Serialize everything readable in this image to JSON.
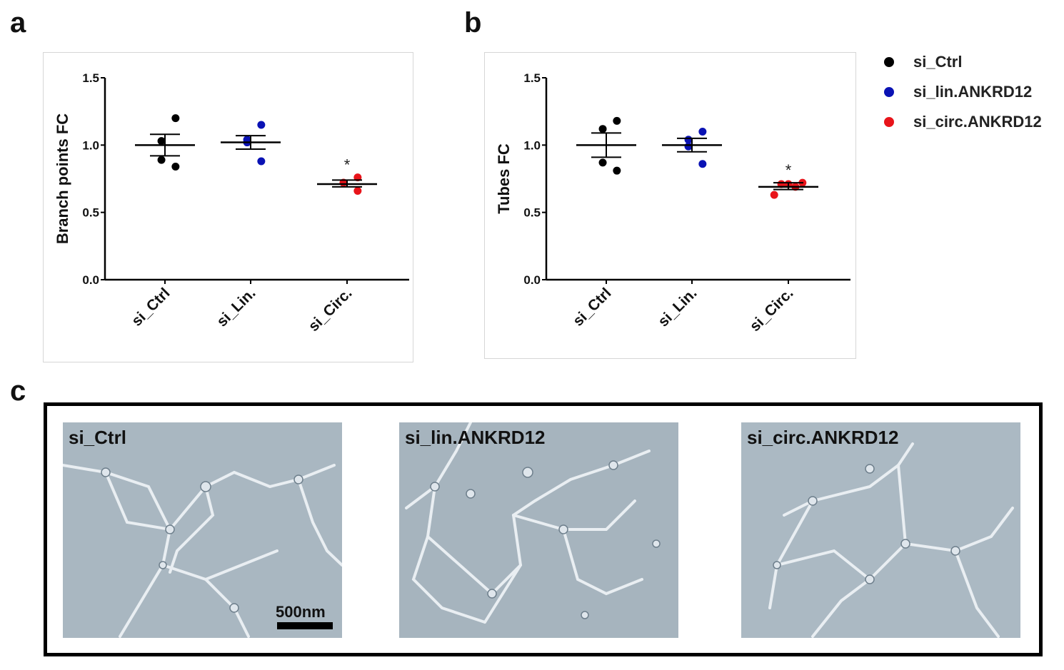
{
  "panels": {
    "a": "a",
    "b": "b",
    "c": "c"
  },
  "legend": [
    {
      "label": "si_Ctrl",
      "color": "#000000"
    },
    {
      "label": "si_lin.ANKRD12",
      "color": "#0a12b4"
    },
    {
      "label": "si_circ.ANKRD12",
      "color": "#e8141a"
    }
  ],
  "chart_data": [
    {
      "type": "scatter",
      "ylabel": "Branch points FC",
      "xlabel": "",
      "ylim": [
        0.0,
        1.5
      ],
      "yticks": [
        "0.0",
        "0.5",
        "1.0",
        "1.5"
      ],
      "categories": [
        "si_Ctrl",
        "si_Lin.",
        "si_Circ."
      ],
      "series": [
        {
          "name": "si_Ctrl",
          "color": "#000000",
          "points": [
            1.2,
            1.03,
            0.89,
            0.84
          ],
          "mean": 1.0,
          "sem": [
            0.92,
            1.08
          ]
        },
        {
          "name": "si_lin.ANKRD12",
          "color": "#0a12b4",
          "points": [
            1.15,
            1.04,
            1.02,
            0.88
          ],
          "mean": 1.02,
          "sem": [
            0.97,
            1.07
          ]
        },
        {
          "name": "si_circ.ANKRD12",
          "color": "#e8141a",
          "points": [
            0.76,
            0.72,
            0.72,
            0.66
          ],
          "mean": 0.71,
          "sem": [
            0.69,
            0.74
          ]
        }
      ],
      "annotations": [
        {
          "category": "si_Circ.",
          "text": "*"
        }
      ]
    },
    {
      "type": "scatter",
      "ylabel": "Tubes FC",
      "xlabel": "",
      "ylim": [
        0.0,
        1.5
      ],
      "yticks": [
        "0.0",
        "0.5",
        "1.0",
        "1.5"
      ],
      "categories": [
        "si_Ctrl",
        "si_Lin.",
        "si_Circ."
      ],
      "series": [
        {
          "name": "si_Ctrl",
          "color": "#000000",
          "points": [
            1.18,
            1.12,
            0.87,
            0.81
          ],
          "mean": 1.0,
          "sem": [
            0.91,
            1.09
          ]
        },
        {
          "name": "si_lin.ANKRD12",
          "color": "#0a12b4",
          "points": [
            1.1,
            1.04,
            0.99,
            0.86
          ],
          "mean": 1.0,
          "sem": [
            0.95,
            1.05
          ]
        },
        {
          "name": "si_circ.ANKRD12",
          "color": "#e8141a",
          "points": [
            0.72,
            0.71,
            0.71,
            0.69,
            0.63
          ],
          "mean": 0.69,
          "sem": [
            0.67,
            0.72
          ]
        }
      ],
      "annotations": [
        {
          "category": "si_Circ.",
          "text": "*"
        }
      ]
    }
  ],
  "micrographs": [
    {
      "label": "si_Ctrl"
    },
    {
      "label": "si_lin.ANKRD12"
    },
    {
      "label": "si_circ.ANKRD12"
    }
  ],
  "scale_bar": {
    "label": "500nm"
  }
}
